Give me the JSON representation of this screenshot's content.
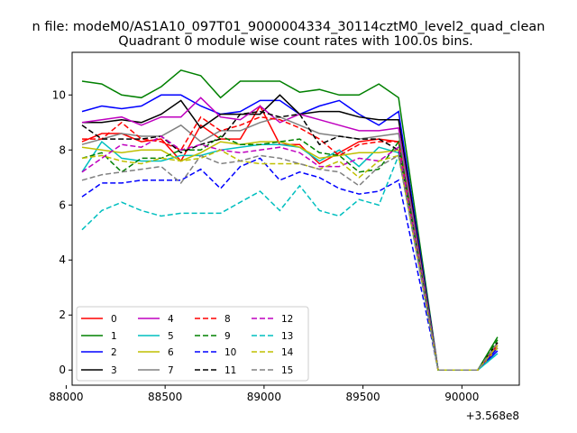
{
  "chart_data": {
    "type": "line",
    "suptitle": "n file: modeM0/AS1A10_097T01_9000004334_30114cztM0_level2_quad_clean",
    "title": "Quadrant 0 module wise count rates with 100.0s bins.",
    "xlabel": "",
    "ylabel": "",
    "x_offset_label": "+3.568e8",
    "xlim": [
      88030,
      90290
    ],
    "ylim": [
      -0.55,
      11.55
    ],
    "xticks": [
      88000,
      88500,
      89000,
      89500,
      90000
    ],
    "yticks": [
      0,
      2,
      4,
      6,
      8,
      10
    ],
    "grid": false,
    "legend_position": "lower-left",
    "x": [
      88080,
      88180,
      88280,
      88380,
      88480,
      88580,
      88680,
      88780,
      88880,
      88980,
      89080,
      89180,
      89280,
      89380,
      89480,
      89580,
      89680,
      89880,
      89980,
      90080,
      90180
    ],
    "series": [
      {
        "name": "0",
        "color": "#ff0000",
        "dash": "solid",
        "values": [
          8.3,
          8.6,
          8.6,
          8.3,
          8.4,
          7.6,
          8.9,
          8.4,
          8.4,
          9.6,
          8.2,
          8.2,
          7.5,
          7.9,
          8.3,
          8.4,
          8.3,
          0,
          0,
          0,
          1.0
        ]
      },
      {
        "name": "1",
        "color": "#008000",
        "dash": "solid",
        "values": [
          10.5,
          10.4,
          10.0,
          9.9,
          10.3,
          10.9,
          10.7,
          9.9,
          10.5,
          10.5,
          10.5,
          10.1,
          10.2,
          10.0,
          10.0,
          10.4,
          9.9,
          0,
          0,
          0,
          1.2
        ]
      },
      {
        "name": "2",
        "color": "#0000ff",
        "dash": "solid",
        "values": [
          9.4,
          9.6,
          9.5,
          9.6,
          10.0,
          10.0,
          9.6,
          9.3,
          9.4,
          9.8,
          9.8,
          9.3,
          9.6,
          9.8,
          9.3,
          8.9,
          9.4,
          0,
          0,
          0,
          0.7
        ]
      },
      {
        "name": "3",
        "color": "#000000",
        "dash": "solid",
        "values": [
          9.0,
          9.0,
          9.1,
          9.0,
          9.3,
          9.8,
          8.8,
          9.3,
          9.3,
          9.3,
          10.0,
          9.3,
          9.4,
          9.4,
          9.2,
          9.1,
          9.1,
          0,
          0,
          0,
          0.8
        ]
      },
      {
        "name": "4",
        "color": "#bf00bf",
        "dash": "solid",
        "values": [
          9.0,
          9.1,
          9.2,
          8.9,
          9.2,
          9.2,
          9.9,
          9.2,
          9.1,
          9.6,
          9.0,
          9.3,
          9.1,
          8.9,
          8.7,
          8.7,
          8.8,
          0,
          0,
          0,
          0.9
        ]
      },
      {
        "name": "5",
        "color": "#00bfbf",
        "dash": "solid",
        "values": [
          7.2,
          8.3,
          7.7,
          7.6,
          7.6,
          7.8,
          7.8,
          8.0,
          8.1,
          8.2,
          8.2,
          8.1,
          7.6,
          8.0,
          7.4,
          8.1,
          7.9,
          0,
          0,
          0,
          0.6
        ]
      },
      {
        "name": "6",
        "color": "#bfbf00",
        "dash": "solid",
        "values": [
          8.1,
          8.0,
          7.9,
          8.0,
          8.0,
          7.6,
          7.9,
          8.3,
          8.2,
          8.3,
          8.3,
          8.1,
          7.7,
          7.8,
          7.9,
          7.9,
          8.0,
          0,
          0,
          0,
          0.8
        ]
      },
      {
        "name": "7",
        "color": "#808080",
        "dash": "solid",
        "values": [
          8.2,
          8.4,
          8.6,
          8.5,
          8.5,
          8.9,
          8.3,
          8.7,
          8.7,
          9.0,
          9.2,
          8.9,
          8.6,
          8.5,
          8.4,
          8.5,
          8.6,
          0,
          0,
          0,
          0.9
        ]
      },
      {
        "name": "8",
        "color": "#ff0000",
        "dash": "dashed",
        "values": [
          8.4,
          8.4,
          9.0,
          8.4,
          8.3,
          8.0,
          9.2,
          8.7,
          8.9,
          9.2,
          9.1,
          8.8,
          8.4,
          7.8,
          8.2,
          8.3,
          8.3,
          0,
          0,
          0,
          0.9
        ]
      },
      {
        "name": "9",
        "color": "#008000",
        "dash": "dashed",
        "values": [
          7.7,
          7.9,
          7.2,
          7.7,
          7.7,
          8.0,
          8.0,
          8.5,
          8.2,
          8.2,
          8.3,
          8.4,
          7.9,
          7.8,
          7.2,
          7.3,
          8.3,
          0,
          0,
          0,
          1.1
        ]
      },
      {
        "name": "10",
        "color": "#0000ff",
        "dash": "dashed",
        "values": [
          6.3,
          6.8,
          6.8,
          6.9,
          6.9,
          6.9,
          7.3,
          6.6,
          7.4,
          7.7,
          6.9,
          7.2,
          7.0,
          6.6,
          6.4,
          6.5,
          6.9,
          0,
          0,
          0,
          0.8
        ]
      },
      {
        "name": "11",
        "color": "#000000",
        "dash": "dashed",
        "values": [
          8.9,
          8.4,
          8.4,
          8.4,
          8.5,
          7.9,
          8.2,
          8.4,
          9.3,
          9.4,
          9.2,
          9.3,
          8.2,
          8.5,
          8.4,
          8.4,
          8.0,
          0,
          0,
          0,
          1.0
        ]
      },
      {
        "name": "12",
        "color": "#bf00bf",
        "dash": "dashed",
        "values": [
          7.2,
          7.7,
          8.2,
          8.1,
          8.5,
          8.0,
          8.2,
          8.0,
          7.9,
          8.0,
          8.1,
          7.9,
          7.4,
          7.4,
          7.7,
          7.6,
          8.1,
          0,
          0,
          0,
          0.9
        ]
      },
      {
        "name": "13",
        "color": "#00bfbf",
        "dash": "dashed",
        "values": [
          5.1,
          5.8,
          6.1,
          5.8,
          5.6,
          5.7,
          5.7,
          5.7,
          6.1,
          6.5,
          5.8,
          6.7,
          5.8,
          5.6,
          6.2,
          6.0,
          7.8,
          0,
          0,
          0,
          0.6
        ]
      },
      {
        "name": "14",
        "color": "#bfbf00",
        "dash": "dashed",
        "values": [
          7.7,
          7.8,
          7.6,
          7.5,
          7.7,
          7.6,
          7.7,
          8.0,
          7.6,
          7.5,
          7.5,
          7.5,
          7.3,
          7.6,
          7.0,
          7.6,
          7.8,
          0,
          0,
          0,
          0.9
        ]
      },
      {
        "name": "15",
        "color": "#808080",
        "dash": "dashed",
        "values": [
          6.9,
          7.1,
          7.2,
          7.3,
          7.4,
          6.8,
          7.8,
          7.5,
          7.6,
          7.8,
          7.7,
          7.5,
          7.3,
          7.2,
          6.7,
          7.4,
          7.8,
          0,
          0,
          0,
          1.0
        ]
      }
    ]
  }
}
